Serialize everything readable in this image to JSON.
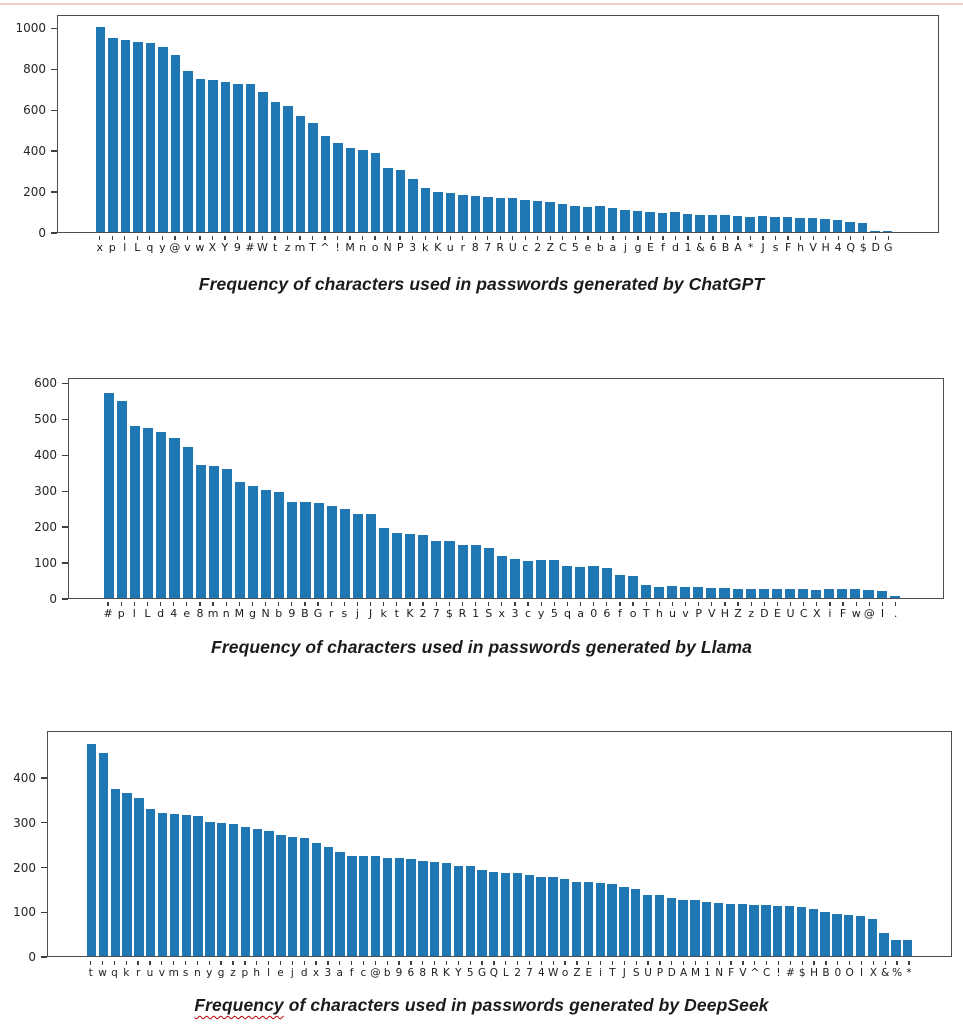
{
  "page": {
    "background": "#ffffff",
    "top_line_color": "#f2caca",
    "bar_color": "#1f77b4",
    "spine_color": "#4d4d4d",
    "misspell_underline_color": "#c00000"
  },
  "chart_data": [
    {
      "id": "chatgpt",
      "type": "bar",
      "caption": "Frequency of characters used in passwords generated by ChatGPT",
      "ylabel": "",
      "xlabel": "",
      "ylim": [
        0,
        1065
      ],
      "yticks": [
        0,
        200,
        400,
        600,
        800,
        1000
      ],
      "grid": false,
      "legend": "none",
      "categories": [
        "x",
        "p",
        "l",
        "L",
        "q",
        "y",
        "@",
        "v",
        "w",
        "X",
        "Y",
        "9",
        "#",
        "W",
        "t",
        "z",
        "m",
        "T",
        "^",
        "!",
        "M",
        "n",
        "o",
        "N",
        "P",
        "3",
        "k",
        "K",
        "u",
        "r",
        "8",
        "7",
        "R",
        "U",
        "c",
        "2",
        "Z",
        "C",
        "5",
        "e",
        "b",
        "a",
        "j",
        "g",
        "E",
        "f",
        "d",
        "1",
        "&",
        "6",
        "B",
        "A",
        "*",
        "J",
        "s",
        "F",
        "h",
        "V",
        "H",
        "4",
        "Q",
        "$",
        "D",
        "G"
      ],
      "values": [
        1010,
        955,
        945,
        938,
        933,
        910,
        875,
        792,
        752,
        750,
        742,
        731,
        728,
        692,
        640,
        622,
        572,
        538,
        475,
        440,
        412,
        403,
        388,
        316,
        304,
        260,
        218,
        198,
        192,
        183,
        176,
        171,
        166,
        170,
        160,
        152,
        148,
        138,
        128,
        123,
        126,
        116,
        107,
        104,
        98,
        94,
        98,
        90,
        86,
        82,
        84,
        78,
        76,
        78,
        72,
        76,
        70,
        68,
        62,
        60,
        48,
        42,
        7,
        6
      ]
    },
    {
      "id": "llama",
      "type": "bar",
      "caption": "Frequency of characters used in passwords generated by Llama",
      "ylabel": "",
      "xlabel": "",
      "ylim": [
        0,
        615
      ],
      "yticks": [
        0,
        100,
        200,
        300,
        400,
        500,
        600
      ],
      "grid": false,
      "legend": "none",
      "categories": [
        "#",
        "p",
        "l",
        "L",
        "d",
        "4",
        "e",
        "8",
        "m",
        "n",
        "M",
        "g",
        "N",
        "b",
        "9",
        "B",
        "G",
        "r",
        "s",
        "j",
        "J",
        "k",
        "t",
        "K",
        "2",
        "7",
        "$",
        "R",
        "1",
        "S",
        "x",
        "3",
        "c",
        "y",
        "5",
        "q",
        "a",
        "0",
        "6",
        "f",
        "o",
        "T",
        "h",
        "u",
        "v",
        "P",
        "V",
        "H",
        "Z",
        "z",
        "D",
        "E",
        "U",
        "C",
        "X",
        "i",
        "F",
        "w",
        "@",
        "I",
        "."
      ],
      "values": [
        575,
        552,
        482,
        478,
        466,
        448,
        425,
        374,
        371,
        361,
        326,
        314,
        303,
        299,
        271,
        270,
        266,
        259,
        249,
        237,
        235,
        197,
        183,
        181,
        176,
        161,
        160,
        150,
        150,
        141,
        118,
        109,
        104,
        106,
        106,
        89,
        86,
        89,
        83,
        65,
        61,
        37,
        32,
        35,
        30,
        30,
        28,
        28,
        26,
        26,
        26,
        24,
        26,
        24,
        22,
        26,
        24,
        26,
        22,
        19,
        6
      ]
    },
    {
      "id": "deepseek",
      "type": "bar",
      "caption": "Frequency of characters used in passwords generated by DeepSeek",
      "caption_word": "Frequency",
      "caption_rest": " of characters used in passwords generated by DeepSeek",
      "ylabel": "",
      "xlabel": "",
      "ylim": [
        0,
        505
      ],
      "yticks": [
        0,
        100,
        200,
        300,
        400
      ],
      "grid": false,
      "legend": "none",
      "categories": [
        "t",
        "w",
        "q",
        "k",
        "r",
        "u",
        "v",
        "m",
        "s",
        "n",
        "y",
        "g",
        "z",
        "p",
        "h",
        "l",
        "e",
        "j",
        "d",
        "x",
        "3",
        "a",
        "f",
        "c",
        "@",
        "b",
        "9",
        "6",
        "8",
        "R",
        "K",
        "Y",
        "5",
        "G",
        "Q",
        "L",
        "2",
        "7",
        "4",
        "W",
        "o",
        "Z",
        "E",
        "i",
        "T",
        "J",
        "S",
        "U",
        "P",
        "D",
        "A",
        "M",
        "1",
        "N",
        "F",
        "V",
        "^",
        "C",
        "!",
        "#",
        "$",
        "H",
        "B",
        "0",
        "O",
        "I",
        "X",
        "&",
        "%",
        "*"
      ],
      "values": [
        478,
        457,
        376,
        367,
        357,
        331,
        322,
        320,
        318,
        316,
        302,
        301,
        298,
        290,
        287,
        281,
        272,
        268,
        267,
        255,
        246,
        235,
        225,
        225,
        225,
        222,
        222,
        218,
        215,
        213,
        210,
        204,
        202,
        193,
        189,
        187,
        187,
        182,
        179,
        179,
        174,
        167,
        167,
        164,
        163,
        156,
        150,
        138,
        138,
        130,
        127,
        126,
        122,
        120,
        118,
        117,
        115,
        115,
        113,
        113,
        110,
        107,
        100,
        95,
        93,
        90,
        83,
        52,
        36,
        36
      ]
    }
  ]
}
